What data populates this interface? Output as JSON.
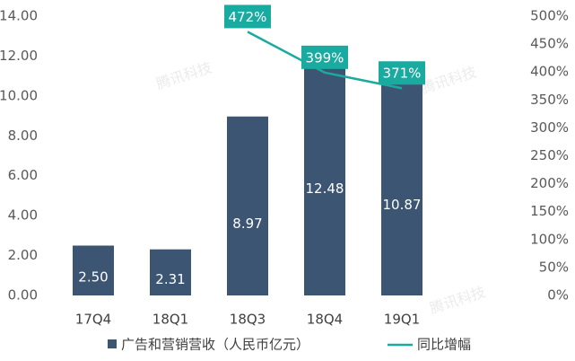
{
  "chart_data": {
    "type": "bar",
    "watermark": "腾讯科技",
    "categories": [
      "17Q4",
      "18Q1",
      "18Q3",
      "18Q4",
      "19Q1"
    ],
    "series": [
      {
        "name": "广告和营销营收（人民币亿元）",
        "type": "bar",
        "color": "#3c5573",
        "values": [
          2.5,
          2.31,
          8.97,
          12.48,
          10.87
        ],
        "value_labels": [
          "2.50",
          "2.31",
          "8.97",
          "12.48",
          "10.87"
        ]
      },
      {
        "name": "同比增幅",
        "type": "line",
        "axis": "y2",
        "color": "#1aaba0",
        "values": [
          null,
          null,
          472,
          399,
          371
        ],
        "value_labels": [
          null,
          null,
          "472%",
          "399%",
          "371%"
        ]
      }
    ],
    "ylim": [
      0,
      14
    ],
    "yticks": [
      {
        "value": 0,
        "label": "0.00"
      },
      {
        "value": 2,
        "label": "2.00"
      },
      {
        "value": 4,
        "label": "4.00"
      },
      {
        "value": 6,
        "label": "6.00"
      },
      {
        "value": 8,
        "label": "8.00"
      },
      {
        "value": 10,
        "label": "10.00"
      },
      {
        "value": 12,
        "label": "12.00"
      },
      {
        "value": 14,
        "label": "14.00"
      }
    ],
    "y2lim": [
      0,
      500
    ],
    "y2ticks": [
      {
        "value": 0,
        "label": "0%"
      },
      {
        "value": 50,
        "label": "50%"
      },
      {
        "value": 100,
        "label": "100%"
      },
      {
        "value": 150,
        "label": "150%"
      },
      {
        "value": 200,
        "label": "200%"
      },
      {
        "value": 250,
        "label": "250%"
      },
      {
        "value": 300,
        "label": "300%"
      },
      {
        "value": 350,
        "label": "350%"
      },
      {
        "value": 400,
        "label": "400%"
      },
      {
        "value": 450,
        "label": "450%"
      },
      {
        "value": 500,
        "label": "500%"
      }
    ],
    "grid": false
  }
}
